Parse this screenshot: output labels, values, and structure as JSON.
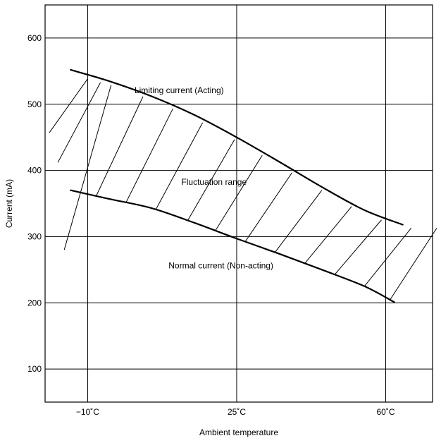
{
  "chart_data": {
    "type": "area",
    "title": "",
    "xlabel": "Ambient temperature",
    "ylabel": "Current (mA)",
    "xlim": [
      -20,
      71
    ],
    "ylim": [
      50,
      650
    ],
    "x_ticks": [
      -10,
      25,
      60
    ],
    "x_tick_labels": [
      "−10˚C",
      "25˚C",
      "60˚C"
    ],
    "y_ticks": [
      100,
      200,
      300,
      400,
      500,
      600
    ],
    "y_tick_labels": [
      "100",
      "200",
      "300",
      "400",
      "500",
      "600"
    ],
    "grid": true,
    "series": [
      {
        "x": [
          -14,
          -5,
          5,
          15,
          25,
          35,
          45,
          55,
          64
        ],
        "y": [
          552,
          535,
          512,
          484,
          450,
          413,
          375,
          340,
          318
        ]
      },
      {
        "x": [
          -14,
          -5,
          5,
          15,
          25,
          35,
          45,
          55,
          62
        ],
        "y": [
          370,
          357,
          343,
          321,
          297,
          274,
          250,
          225,
          201
        ]
      }
    ],
    "annotations": [
      {
        "text": "Limiting current (Acting)",
        "x": 1,
        "y": 517
      },
      {
        "text": "Fluctuation range",
        "x": 12,
        "y": 378
      },
      {
        "text": "Normal current (Non-acting)",
        "x": 9,
        "y": 252
      }
    ]
  }
}
